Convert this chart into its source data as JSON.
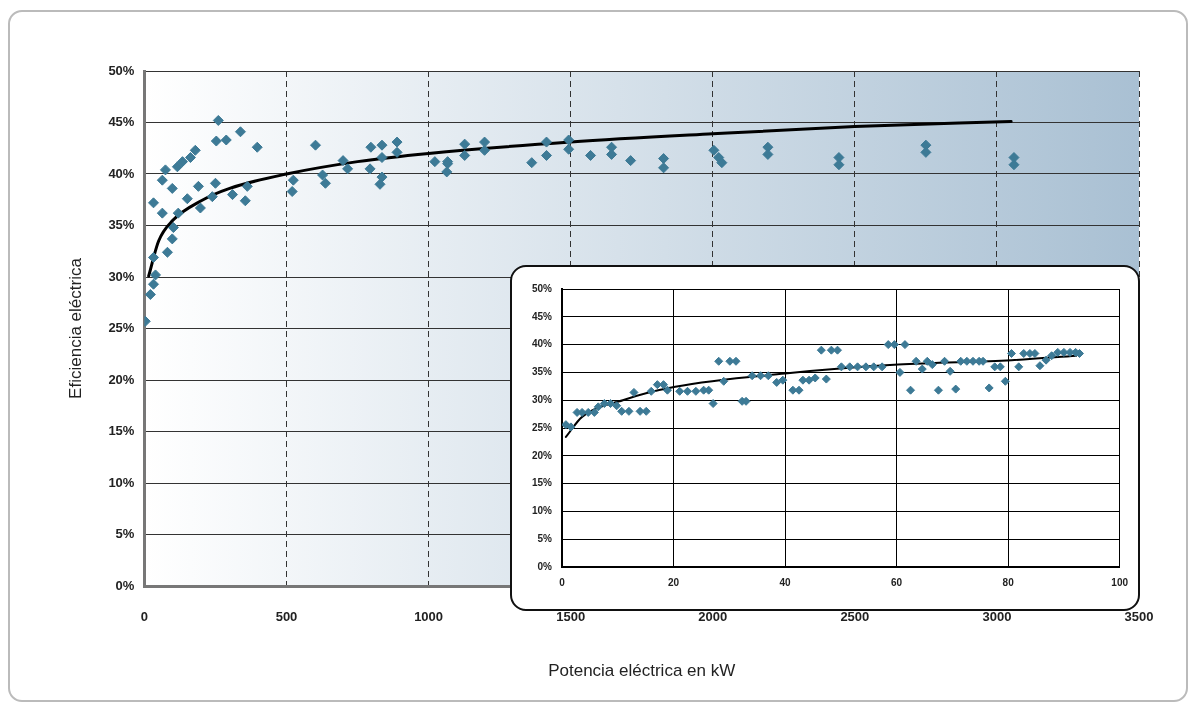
{
  "chart_data": [
    {
      "type": "scatter",
      "xlabel": "Potencia eléctrica en kW",
      "ylabel": "Eficiencia eléctrica",
      "xlim": [
        0,
        3500
      ],
      "xticks": [
        0,
        500,
        1000,
        1500,
        2000,
        2500,
        3000,
        3500
      ],
      "ylim": [
        0,
        50
      ],
      "yticks": [
        {
          "value": 0,
          "label": "0%"
        },
        {
          "value": 5,
          "label": "5%"
        },
        {
          "value": 10,
          "label": "10%"
        },
        {
          "value": 15,
          "label": "15%"
        },
        {
          "value": 20,
          "label": "20%"
        },
        {
          "value": 25,
          "label": "25%"
        },
        {
          "value": 30,
          "label": "30%"
        },
        {
          "value": 35,
          "label": "35%"
        },
        {
          "value": 40,
          "label": "40%"
        },
        {
          "value": 45,
          "label": "45%"
        },
        {
          "value": 50,
          "label": "50%"
        }
      ],
      "grid": true,
      "legend": false,
      "series": [
        {
          "type": "scatter",
          "marker": "diamond",
          "color": "#3d7a96",
          "x": [
            3,
            21,
            32,
            39,
            32,
            81,
            98,
            102,
            32,
            63,
            74,
            63,
            98,
            116,
            134,
            162,
            179,
            119,
            151,
            190,
            197,
            239,
            250,
            260,
            253,
            288,
            338,
            397,
            310,
            355,
            362,
            524,
            520,
            602,
            627,
            637,
            699,
            715,
            797,
            794,
            836,
            836,
            836,
            829,
            889,
            889,
            1022,
            1067,
            1064,
            1067,
            1127,
            1127,
            1197,
            1197,
            1363,
            1415,
            1415,
            1493,
            1493,
            1570,
            1644,
            1644,
            1711,
            1827,
            1827,
            2004,
            2021,
            2032,
            2194,
            2194,
            2444,
            2444,
            2750,
            2750,
            3060,
            3060
          ],
          "values": [
            25.7,
            28.3,
            29.3,
            30.2,
            31.9,
            32.4,
            33.7,
            34.8,
            37.2,
            39.4,
            40.4,
            36.2,
            38.6,
            40.7,
            41.2,
            41.6,
            42.3,
            36.2,
            37.6,
            38.8,
            36.7,
            37.8,
            39.1,
            45.2,
            43.2,
            43.3,
            44.1,
            42.6,
            38.0,
            37.4,
            38.8,
            39.4,
            38.3,
            42.8,
            39.9,
            39.1,
            41.3,
            40.5,
            42.6,
            40.5,
            42.8,
            41.6,
            39.7,
            39.0,
            43.1,
            42.1,
            41.2,
            41.2,
            40.2,
            41.0,
            42.9,
            41.8,
            43.1,
            42.3,
            41.1,
            43.1,
            41.8,
            43.3,
            42.4,
            41.8,
            42.6,
            41.9,
            41.3,
            41.5,
            40.6,
            42.3,
            41.6,
            41.1,
            42.6,
            41.9,
            41.6,
            40.9,
            42.8,
            42.1,
            41.6,
            40.9
          ]
        },
        {
          "type": "line",
          "line_style": "solid",
          "color": "#000000",
          "x": [
            15,
            50,
            100,
            200,
            300,
            500,
            750,
            1000,
            1500,
            2000,
            2500,
            3050
          ],
          "values": [
            30.1,
            33.5,
            35.5,
            37.4,
            38.6,
            40.0,
            41.2,
            42.0,
            43.1,
            43.9,
            44.6,
            45.1
          ]
        }
      ]
    },
    {
      "type": "scatter",
      "xlim": [
        0,
        100
      ],
      "xticks": [
        0,
        20,
        40,
        60,
        80,
        100
      ],
      "ylim": [
        0,
        50
      ],
      "yticks": [
        {
          "value": 0,
          "label": "0%"
        },
        {
          "value": 5,
          "label": "5%"
        },
        {
          "value": 10,
          "label": "10%"
        },
        {
          "value": 15,
          "label": "15%"
        },
        {
          "value": 20,
          "label": "20%"
        },
        {
          "value": 25,
          "label": "25%"
        },
        {
          "value": 30,
          "label": "30%"
        },
        {
          "value": 35,
          "label": "35%"
        },
        {
          "value": 40,
          "label": "40%"
        },
        {
          "value": 45,
          "label": "45%"
        },
        {
          "value": 50,
          "label": "50%"
        }
      ],
      "grid": true,
      "legend": false,
      "series": [
        {
          "type": "scatter",
          "marker": "diamond",
          "color": "#3d7a96",
          "x": [
            0.7,
            1.6,
            2.7,
            3.6,
            4.7,
            5.8,
            6.5,
            7.6,
            8.7,
            9.8,
            10.7,
            12.0,
            12.9,
            14.0,
            15.1,
            16.0,
            17.1,
            18.2,
            18.9,
            21.1,
            22.5,
            24.0,
            25.4,
            26.3,
            27.1,
            28.1,
            29.0,
            30.1,
            31.2,
            32.3,
            33.0,
            34.1,
            35.6,
            37.0,
            38.5,
            39.6,
            41.4,
            42.5,
            43.2,
            44.3,
            45.4,
            46.5,
            47.4,
            48.3,
            49.4,
            50.1,
            51.6,
            53.0,
            54.5,
            55.9,
            57.4,
            58.5,
            59.6,
            60.6,
            61.5,
            62.5,
            63.5,
            64.6,
            65.5,
            66.4,
            67.5,
            68.6,
            69.6,
            70.6,
            71.5,
            72.6,
            73.7,
            74.8,
            75.5,
            76.6,
            77.6,
            78.6,
            79.5,
            80.6,
            81.9,
            82.8,
            83.9,
            84.8,
            85.7,
            86.8,
            87.8,
            88.9,
            90.0,
            91.1,
            92.1,
            92.8
          ],
          "values": [
            25.6,
            25.2,
            27.8,
            27.8,
            27.8,
            27.8,
            28.8,
            29.4,
            29.4,
            29.0,
            28.0,
            28.0,
            31.4,
            28.0,
            28.0,
            31.6,
            32.8,
            32.8,
            31.8,
            31.6,
            31.6,
            31.6,
            31.8,
            31.8,
            29.4,
            37.0,
            33.4,
            37.0,
            37.0,
            29.8,
            29.8,
            34.4,
            34.4,
            34.4,
            33.2,
            33.6,
            31.8,
            31.8,
            33.6,
            33.6,
            34.0,
            39.0,
            33.8,
            39.0,
            39.0,
            36.0,
            36.0,
            36.0,
            36.0,
            36.0,
            36.0,
            40.0,
            40.0,
            35.0,
            40.0,
            31.8,
            37.0,
            35.6,
            37.0,
            36.4,
            31.8,
            37.0,
            35.2,
            32.0,
            37.0,
            37.0,
            37.0,
            37.0,
            37.0,
            32.2,
            36.0,
            36.0,
            33.4,
            38.4,
            36.0,
            38.4,
            38.4,
            38.4,
            36.2,
            37.2,
            38.0,
            38.6,
            38.6,
            38.6,
            38.6,
            38.4
          ]
        },
        {
          "type": "line",
          "line_style": "solid",
          "color": "#000000",
          "x": [
            0.7,
            3.6,
            10.9,
            20.3,
            40,
            60.3,
            80.6,
            92.2
          ],
          "values": [
            23.4,
            27.0,
            30.0,
            32.4,
            34.8,
            36.4,
            37.2,
            38.0
          ]
        }
      ]
    }
  ]
}
